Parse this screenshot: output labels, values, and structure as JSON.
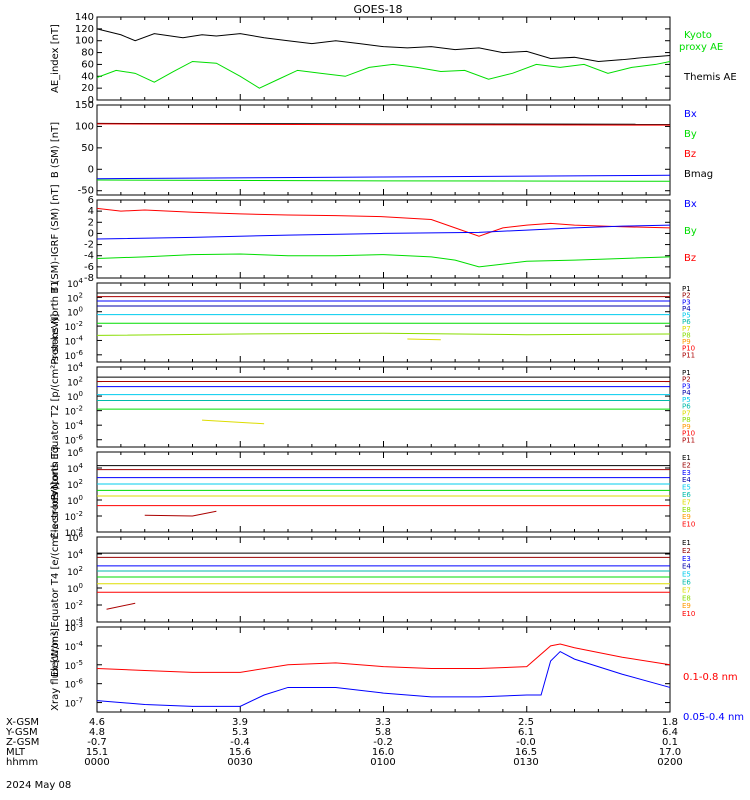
{
  "title": "GOES-18",
  "colors": {
    "black": "#000000",
    "red": "#ff0000",
    "green": "#00dd00",
    "blue": "#0000ff",
    "darkred": "#aa0000",
    "yellow": "#dddd00",
    "cyan": "#00ccee",
    "teal": "#00bbaa",
    "orange": "#ff9900",
    "navy": "#0000aa",
    "lime": "#88dd00",
    "maroon": "#990000"
  },
  "footer": {
    "rows": [
      {
        "label": "X-GSM",
        "values": [
          "4.6",
          "3.9",
          "3.3",
          "2.5",
          "1.8"
        ]
      },
      {
        "label": "Y-GSM",
        "values": [
          "4.8",
          "5.3",
          "5.8",
          "6.1",
          "6.4"
        ]
      },
      {
        "label": "Z-GSM",
        "values": [
          "-0.7",
          "-0.4",
          "-0.2",
          "-0.0",
          "0.1"
        ]
      },
      {
        "label": "MLT",
        "values": [
          "15.1",
          "15.6",
          "16.0",
          "16.5",
          "17.0"
        ]
      },
      {
        "label": "hhmm",
        "values": [
          "0000",
          "0030",
          "0100",
          "0130",
          "0200"
        ]
      }
    ],
    "date": "2024 May 08"
  },
  "chart_data": [
    {
      "type": "line",
      "ylabel": "AE_index [nT]",
      "ylim": [
        0,
        140
      ],
      "yticks": [
        "0",
        "20",
        "40",
        "60",
        "80",
        "100",
        "120",
        "140"
      ],
      "legend": [
        "Kyoto proxy AE",
        "Themis AE"
      ],
      "series": [
        {
          "name": "Themis AE",
          "color": "black",
          "x": [
            0,
            5,
            8,
            12,
            18,
            22,
            25,
            30,
            35,
            40,
            45,
            50,
            55,
            60,
            65,
            70,
            75,
            80,
            85,
            90,
            95,
            100,
            105,
            110,
            115,
            120
          ],
          "values": [
            120,
            110,
            100,
            112,
            105,
            110,
            108,
            112,
            105,
            100,
            95,
            100,
            95,
            90,
            88,
            90,
            85,
            88,
            80,
            82,
            70,
            72,
            65,
            68,
            72,
            75
          ]
        },
        {
          "name": "Kyoto proxy AE",
          "color": "green",
          "x": [
            0,
            4,
            8,
            12,
            16,
            20,
            25,
            30,
            34,
            38,
            42,
            47,
            52,
            57,
            62,
            67,
            72,
            77,
            82,
            87,
            92,
            97,
            102,
            107,
            112,
            117,
            120
          ],
          "values": [
            38,
            50,
            45,
            30,
            48,
            65,
            62,
            40,
            20,
            35,
            50,
            45,
            40,
            55,
            60,
            55,
            48,
            50,
            35,
            45,
            60,
            55,
            60,
            45,
            55,
            60,
            65
          ]
        }
      ]
    },
    {
      "type": "line",
      "ylabel": "B (SM) [nT]",
      "ylim": [
        -60,
        150
      ],
      "yticks": [
        "-50",
        "0",
        "50",
        "100",
        "150"
      ],
      "legend": [
        "Bx",
        "By",
        "Bz",
        "Bmag"
      ],
      "series": [
        {
          "name": "Bmag",
          "color": "black",
          "x": [
            0,
            120
          ],
          "values": [
            107,
            105
          ]
        },
        {
          "name": "Bz",
          "color": "red",
          "x": [
            0,
            60,
            120
          ],
          "values": [
            106,
            104,
            103
          ]
        },
        {
          "name": "Bx",
          "color": "blue",
          "x": [
            0,
            60,
            120
          ],
          "values": [
            -22,
            -18,
            -14
          ]
        },
        {
          "name": "By",
          "color": "green",
          "x": [
            0,
            60,
            120
          ],
          "values": [
            -25,
            -27,
            -28
          ]
        }
      ]
    },
    {
      "type": "line",
      "ylabel": "B (SM)-IGRF (SM) [nT]",
      "ylim": [
        -8,
        6
      ],
      "yticks": [
        "-8",
        "-6",
        "-4",
        "-2",
        "0",
        "2",
        "4",
        "6"
      ],
      "legend": [
        "Bx",
        "By",
        "Bz"
      ],
      "series": [
        {
          "name": "Bz",
          "color": "red",
          "x": [
            0,
            5,
            10,
            20,
            30,
            40,
            50,
            60,
            70,
            75,
            80,
            85,
            90,
            95,
            100,
            110,
            120
          ],
          "values": [
            4.5,
            4,
            4.2,
            3.8,
            3.5,
            3.3,
            3.2,
            3.0,
            2.5,
            1.0,
            -0.5,
            1.0,
            1.5,
            1.8,
            1.5,
            1.2,
            1.0
          ]
        },
        {
          "name": "Bx",
          "color": "blue",
          "x": [
            0,
            20,
            40,
            60,
            80,
            90,
            100,
            110,
            120
          ],
          "values": [
            -1.0,
            -0.7,
            -0.3,
            0.0,
            0.2,
            0.6,
            1.0,
            1.3,
            1.5
          ]
        },
        {
          "name": "By",
          "color": "green",
          "x": [
            0,
            10,
            20,
            30,
            40,
            50,
            60,
            70,
            75,
            80,
            85,
            90,
            100,
            110,
            120
          ],
          "values": [
            -4.5,
            -4.2,
            -3.8,
            -3.7,
            -4.0,
            -4.0,
            -3.8,
            -4.2,
            -4.8,
            -6.0,
            -5.5,
            -5.0,
            -4.8,
            -4.5,
            -4.2
          ]
        }
      ]
    },
    {
      "type": "line",
      "log": true,
      "ylabel": "Protons North T1",
      "ylim": [
        -7,
        4
      ],
      "yticks": [
        "10^-6",
        "10^-4",
        "10^-2",
        "10^0",
        "10^2",
        "10^4"
      ],
      "legend": [
        "P1",
        "P2",
        "P3",
        "P4",
        "P5",
        "P6",
        "P7",
        "P8",
        "P9",
        "P10",
        "P11"
      ],
      "series": [
        {
          "name": "P1",
          "color": "black",
          "x": [
            0,
            120
          ],
          "values": [
            2.6,
            2.6
          ]
        },
        {
          "name": "P2",
          "color": "darkred",
          "x": [
            0,
            120
          ],
          "values": [
            2.1,
            2.1
          ]
        },
        {
          "name": "P3",
          "color": "blue",
          "x": [
            0,
            120
          ],
          "values": [
            1.5,
            1.5
          ]
        },
        {
          "name": "P4",
          "color": "navy",
          "x": [
            0,
            120
          ],
          "values": [
            0.8,
            0.8
          ]
        },
        {
          "name": "P5",
          "color": "cyan",
          "x": [
            0,
            120
          ],
          "values": [
            -0.4,
            -0.4
          ]
        },
        {
          "name": "P6",
          "color": "green",
          "x": [
            0,
            120
          ],
          "values": [
            -1.6,
            -1.6
          ]
        },
        {
          "name": "P7",
          "color": "lime",
          "x": [
            0,
            30,
            60,
            90,
            120
          ],
          "values": [
            -3.3,
            -3.1,
            -3.0,
            -3.2,
            -3.1
          ]
        },
        {
          "name": "P9",
          "color": "yellow",
          "x": [
            65,
            72
          ],
          "values": [
            -3.8,
            -3.9
          ]
        }
      ]
    },
    {
      "type": "line",
      "log": true,
      "ylabel": "Protons Equator T2 [p/(cm²-s-sr-keV)]",
      "ylim": [
        -7,
        4
      ],
      "yticks": [
        "10^-6",
        "10^-4",
        "10^-2",
        "10^0",
        "10^2",
        "10^4"
      ],
      "legend": [
        "P1",
        "P2",
        "P3",
        "P4",
        "P5",
        "P6",
        "P7",
        "P8",
        "P9",
        "P10",
        "P11"
      ],
      "series": [
        {
          "name": "P1",
          "color": "black",
          "x": [
            0,
            120
          ],
          "values": [
            2.6,
            2.6
          ]
        },
        {
          "name": "P2",
          "color": "darkred",
          "x": [
            0,
            120
          ],
          "values": [
            2.0,
            2.0
          ]
        },
        {
          "name": "P3",
          "color": "blue",
          "x": [
            0,
            120
          ],
          "values": [
            1.3,
            1.3
          ]
        },
        {
          "name": "P4",
          "color": "cyan",
          "x": [
            0,
            120
          ],
          "values": [
            0.2,
            0.2
          ]
        },
        {
          "name": "P5",
          "color": "teal",
          "x": [
            0,
            120
          ],
          "values": [
            -0.6,
            -0.6
          ]
        },
        {
          "name": "P6",
          "color": "green",
          "x": [
            0,
            120
          ],
          "values": [
            -1.8,
            -1.8
          ]
        },
        {
          "name": "P8",
          "color": "yellow",
          "x": [
            22,
            35
          ],
          "values": [
            -3.3,
            -3.8
          ]
        }
      ]
    },
    {
      "type": "line",
      "log": true,
      "ylabel": "Electrons North T3",
      "ylim": [
        -4,
        6
      ],
      "yticks": [
        "10^-4",
        "10^-2",
        "10^0",
        "10^2",
        "10^4",
        "10^6"
      ],
      "legend": [
        "E1",
        "E2",
        "E3",
        "E4",
        "E5",
        "E6",
        "E7",
        "E8",
        "E9",
        "E10"
      ],
      "series": [
        {
          "name": "E1",
          "color": "black",
          "x": [
            0,
            120
          ],
          "values": [
            4.3,
            4.3
          ]
        },
        {
          "name": "E2",
          "color": "maroon",
          "x": [
            0,
            120
          ],
          "values": [
            3.8,
            3.8
          ]
        },
        {
          "name": "E3",
          "color": "blue",
          "x": [
            0,
            120
          ],
          "values": [
            2.8,
            2.8
          ]
        },
        {
          "name": "E4",
          "color": "cyan",
          "x": [
            0,
            120
          ],
          "values": [
            2.0,
            2.0
          ]
        },
        {
          "name": "E5",
          "color": "green",
          "x": [
            0,
            120
          ],
          "values": [
            1.2,
            1.2
          ]
        },
        {
          "name": "E6",
          "color": "yellow",
          "x": [
            0,
            120
          ],
          "values": [
            0.5,
            0.5
          ]
        },
        {
          "name": "E8",
          "color": "red",
          "x": [
            0,
            120
          ],
          "values": [
            -0.7,
            -0.7
          ]
        },
        {
          "name": "E9",
          "color": "darkred",
          "x": [
            10,
            20,
            25
          ],
          "values": [
            -1.9,
            -2.0,
            -1.4
          ]
        }
      ]
    },
    {
      "type": "line",
      "log": true,
      "ylabel": "Electrons Equator T4 [e/(cm²-s-sr-keV)]",
      "ylim": [
        -4,
        6
      ],
      "yticks": [
        "10^-4",
        "10^-2",
        "10^0",
        "10^2",
        "10^4",
        "10^6"
      ],
      "legend": [
        "E1",
        "E2",
        "E3",
        "E4",
        "E5",
        "E6",
        "E7",
        "E8",
        "E9",
        "E10"
      ],
      "series": [
        {
          "name": "E1",
          "color": "black",
          "x": [
            0,
            120
          ],
          "values": [
            4.1,
            4.1
          ]
        },
        {
          "name": "E2",
          "color": "maroon",
          "x": [
            0,
            120
          ],
          "values": [
            3.6,
            3.6
          ]
        },
        {
          "name": "E3",
          "color": "blue",
          "x": [
            0,
            120
          ],
          "values": [
            2.6,
            2.6
          ]
        },
        {
          "name": "E4",
          "color": "teal",
          "x": [
            0,
            120
          ],
          "values": [
            2.0,
            2.0
          ]
        },
        {
          "name": "E5",
          "color": "green",
          "x": [
            0,
            120
          ],
          "values": [
            1.3,
            1.3
          ]
        },
        {
          "name": "E6",
          "color": "yellow",
          "x": [
            0,
            120
          ],
          "values": [
            0.5,
            0.5
          ]
        },
        {
          "name": "E8",
          "color": "red",
          "x": [
            0,
            120
          ],
          "values": [
            -0.5,
            -0.5
          ]
        },
        {
          "name": "E9",
          "color": "darkred",
          "x": [
            2,
            8
          ],
          "values": [
            -2.5,
            -1.8
          ]
        }
      ]
    },
    {
      "type": "line",
      "log": true,
      "ylabel": "Xray flux [W/m²]",
      "ylim": [
        -7.5,
        -3
      ],
      "yticks": [
        "10^-7",
        "10^-6",
        "10^-5",
        "10^-4",
        "10^-3"
      ],
      "legend": [
        "0.1-0.8 nm",
        "0.05-0.4 nm"
      ],
      "series": [
        {
          "name": "0.1-0.8 nm",
          "color": "red",
          "x": [
            0,
            10,
            20,
            30,
            40,
            50,
            60,
            70,
            80,
            90,
            95,
            97,
            100,
            110,
            120
          ],
          "values": [
            -5.2,
            -5.3,
            -5.4,
            -5.4,
            -5.0,
            -4.9,
            -5.1,
            -5.2,
            -5.2,
            -5.1,
            -4.0,
            -3.9,
            -4.1,
            -4.6,
            -5.0
          ]
        },
        {
          "name": "0.05-0.4 nm",
          "color": "blue",
          "x": [
            0,
            10,
            20,
            30,
            35,
            40,
            50,
            60,
            70,
            80,
            90,
            93,
            95,
            97,
            100,
            110,
            120
          ],
          "values": [
            -6.9,
            -7.1,
            -7.2,
            -7.2,
            -6.6,
            -6.2,
            -6.2,
            -6.5,
            -6.7,
            -6.7,
            -6.6,
            -6.6,
            -4.8,
            -4.3,
            -4.7,
            -5.5,
            -6.2
          ]
        }
      ]
    }
  ]
}
